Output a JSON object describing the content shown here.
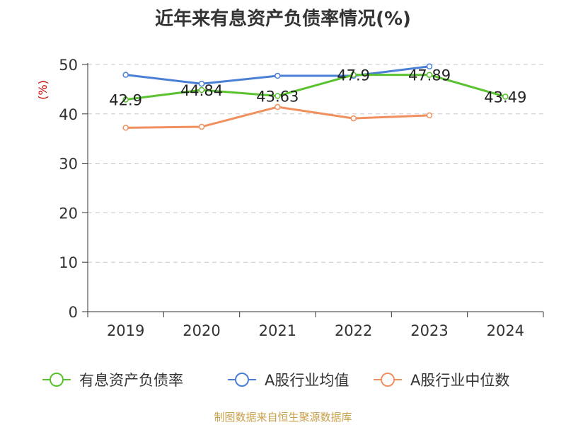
{
  "chart_data": {
    "type": "line",
    "title": "近年来有息资产负债率情况(%)",
    "ylabel": "(%)",
    "xlabel": "",
    "categories": [
      "2019",
      "2020",
      "2021",
      "2022",
      "2023",
      "2024"
    ],
    "ylim": [
      0,
      50
    ],
    "yticks": [
      0,
      10,
      20,
      30,
      40,
      50
    ],
    "grid": true,
    "legend_position": "bottom",
    "series": [
      {
        "name": "有息资产负债率",
        "color": "#5ac12f",
        "values": [
          42.9,
          44.84,
          43.63,
          47.9,
          47.89,
          43.49
        ],
        "labels": [
          "42.9",
          "44.84",
          "43.63",
          "47.9",
          "47.89",
          "43.49"
        ]
      },
      {
        "name": "A股行业均值",
        "color": "#4a7fd6",
        "values": [
          47.9,
          46.1,
          47.7,
          47.7,
          49.6,
          null
        ]
      },
      {
        "name": "A股行业中位数",
        "color": "#f0905e",
        "values": [
          37.2,
          37.4,
          41.4,
          39.1,
          39.7,
          null
        ]
      }
    ]
  },
  "source": "制图数据来自恒生聚源数据库"
}
